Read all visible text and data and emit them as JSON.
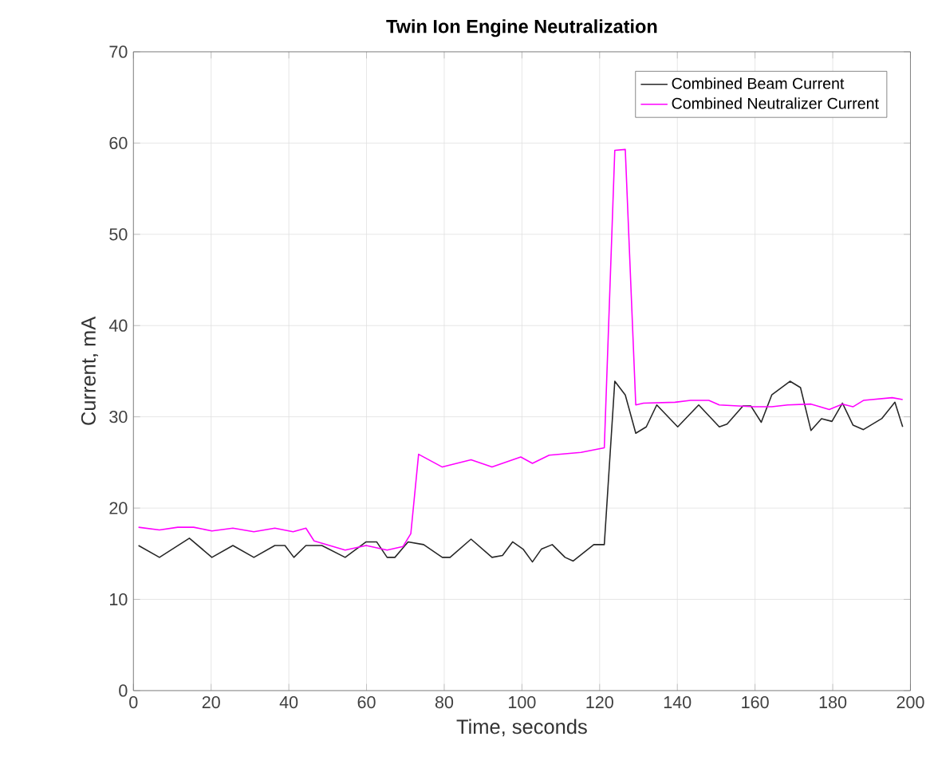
{
  "chart_data": {
    "type": "line",
    "title": "Twin Ion Engine Neutralization",
    "xlabel": "Time, seconds",
    "ylabel": "Current, mA",
    "xlim": [
      0,
      200
    ],
    "ylim": [
      0,
      70
    ],
    "xticks": [
      0,
      20,
      40,
      60,
      80,
      100,
      120,
      140,
      160,
      180,
      200
    ],
    "yticks": [
      0,
      10,
      20,
      30,
      40,
      50,
      60,
      70
    ],
    "grid": true,
    "legend": "top right",
    "marker": "none",
    "line_style": "solid",
    "series": [
      {
        "name": "Combined Beam Current",
        "color": "#262626",
        "x": [
          1.3,
          6.7,
          14.4,
          20.2,
          25.6,
          31,
          36.4,
          39,
          41.3,
          44.4,
          48.5,
          54.5,
          59.9,
          62.6,
          65.3,
          67.3,
          70.7,
          74.7,
          79.5,
          81.5,
          86.9,
          92.3,
          95,
          97.6,
          100.3,
          102.7,
          105,
          107.8,
          111.1,
          113.2,
          118.5,
          121.2,
          123.9,
          126.6,
          129.3,
          132,
          134.7,
          140.1,
          145.5,
          150.8,
          152.8,
          156.9,
          158.9,
          161.6,
          164.3,
          169,
          171.7,
          174.4,
          177.1,
          179.8,
          182.5,
          185.2,
          187.9,
          192.6,
          196,
          198
        ],
        "values": [
          15.9,
          14.6,
          16.7,
          14.6,
          15.9,
          14.6,
          15.9,
          15.9,
          14.6,
          15.9,
          15.9,
          14.6,
          16.3,
          16.3,
          14.6,
          14.6,
          16.3,
          16.0,
          14.6,
          14.6,
          16.6,
          14.6,
          14.8,
          16.3,
          15.5,
          14.1,
          15.5,
          16.0,
          14.6,
          14.2,
          16.0,
          16.0,
          33.9,
          32.4,
          28.2,
          28.9,
          31.3,
          28.9,
          31.3,
          28.9,
          29.2,
          31.2,
          31.2,
          29.4,
          32.4,
          33.9,
          33.2,
          28.5,
          29.8,
          29.5,
          31.5,
          29.1,
          28.6,
          29.8,
          31.6,
          28.9
        ]
      },
      {
        "name": "Combined Neutralizer Current",
        "color": "#ff00ff",
        "x": [
          1.3,
          6.7,
          11.4,
          15.5,
          20.2,
          25.6,
          31,
          36.4,
          41.1,
          44.4,
          46.5,
          54.5,
          59.9,
          65.3,
          69.4,
          71.4,
          73.4,
          79.5,
          86.9,
          92.3,
          99.7,
          102.7,
          107,
          115.2,
          121.2,
          123.9,
          126.6,
          129.3,
          131.3,
          139.4,
          143.4,
          148.1,
          150.8,
          159.6,
          164.3,
          168.4,
          174.4,
          179.1,
          182.5,
          185.2,
          187.9,
          195.3,
          198
        ],
        "values": [
          17.9,
          17.6,
          17.9,
          17.9,
          17.5,
          17.8,
          17.4,
          17.8,
          17.4,
          17.8,
          16.4,
          15.4,
          15.9,
          15.4,
          15.8,
          17.2,
          25.9,
          24.5,
          25.3,
          24.5,
          25.6,
          24.9,
          25.8,
          26.1,
          26.6,
          59.2,
          59.3,
          31.3,
          31.5,
          31.6,
          31.8,
          31.8,
          31.3,
          31.1,
          31.1,
          31.3,
          31.4,
          30.8,
          31.4,
          31.1,
          31.8,
          32.1,
          31.9
        ]
      }
    ]
  }
}
